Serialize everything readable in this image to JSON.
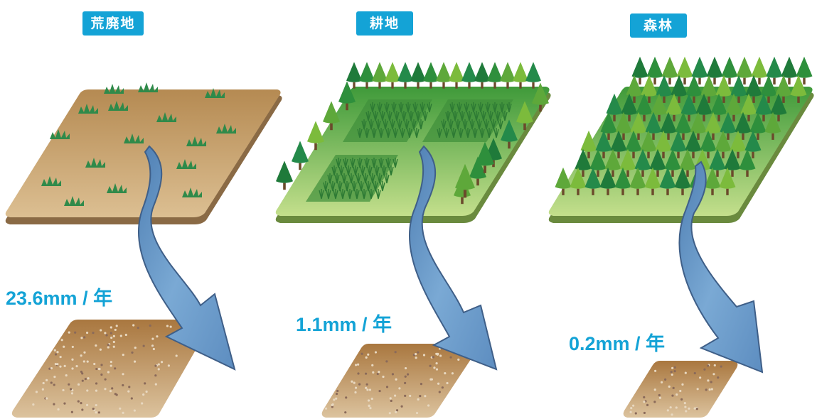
{
  "panels": [
    {
      "label": "荒廃地",
      "rate": "23.6mm / 年",
      "type": "barren"
    },
    {
      "label": "耕地",
      "rate": "1.1mm / 年",
      "type": "farmland"
    },
    {
      "label": "森林",
      "rate": "0.2mm / 年",
      "type": "forest"
    }
  ],
  "colors": {
    "badge": "#14a3d6",
    "rate_text": "#14a3d6",
    "arrow": "#6b9bc9",
    "arrow_edge": "#3f5f88",
    "barren_ground": "#c9a06e",
    "grass_ground": "#a8cf6a",
    "soil": "#b8895a",
    "tree_dark": "#1f7a3a",
    "tree_light": "#7cbb3c"
  },
  "icons": [
    "grass-tuft-icon",
    "tree-icon",
    "crop-row-icon",
    "water-flow-arrow-icon"
  ]
}
